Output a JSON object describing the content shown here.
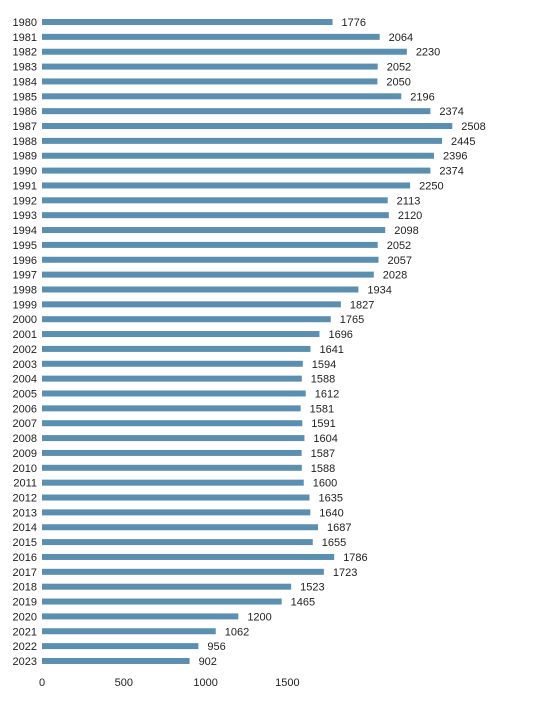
{
  "chart_data": {
    "type": "bar",
    "orientation": "horizontal",
    "title": "",
    "xlabel": "",
    "ylabel": "",
    "categories": [
      "1980",
      "1981",
      "1982",
      "1983",
      "1984",
      "1985",
      "1986",
      "1987",
      "1988",
      "1989",
      "1990",
      "1991",
      "1992",
      "1993",
      "1994",
      "1995",
      "1996",
      "1997",
      "1998",
      "1999",
      "2000",
      "2001",
      "2002",
      "2003",
      "2004",
      "2005",
      "2006",
      "2007",
      "2008",
      "2009",
      "2010",
      "2011",
      "2012",
      "2013",
      "2014",
      "2015",
      "2016",
      "2017",
      "2018",
      "2019",
      "2020",
      "2021",
      "2022",
      "2023"
    ],
    "values": [
      1776,
      2064,
      2230,
      2052,
      2050,
      2196,
      2374,
      2508,
      2445,
      2396,
      2374,
      2250,
      2113,
      2120,
      2098,
      2052,
      2057,
      2028,
      1934,
      1827,
      1765,
      1696,
      1641,
      1594,
      1588,
      1612,
      1581,
      1591,
      1604,
      1587,
      1588,
      1600,
      1635,
      1640,
      1687,
      1655,
      1786,
      1723,
      1523,
      1465,
      1200,
      1062,
      956,
      902
    ],
    "x_ticks": [
      "0",
      "500",
      "1000",
      "1500"
    ],
    "xlim": [
      0,
      2500
    ],
    "grid": false,
    "legend": "none",
    "bar_color": "#5b8fb0",
    "data_labels": true
  }
}
